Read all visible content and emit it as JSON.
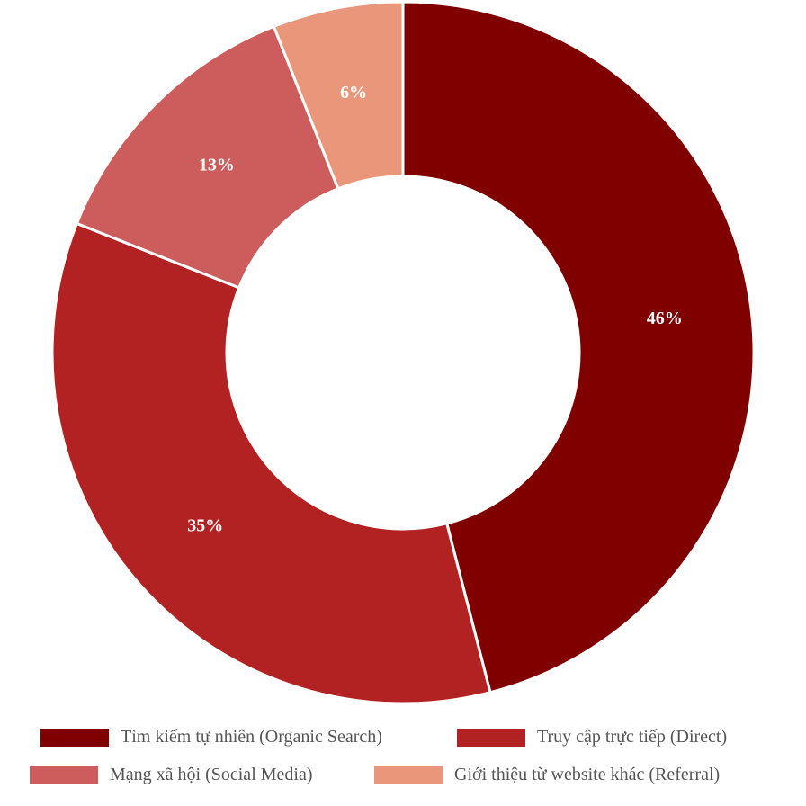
{
  "chart_data": {
    "type": "pie",
    "title": "",
    "categories": [
      "Tìm kiếm tự nhiên (Organic Search)",
      "Truy cập trực tiếp (Direct)",
      "Mạng xã hội (Social Media)",
      "Giới thiệu từ website khác (Referral)"
    ],
    "values": [
      46,
      35,
      13,
      6
    ],
    "labels": [
      "46%",
      "35%",
      "13%",
      "6%"
    ],
    "colors": [
      "#800000",
      "#b22222",
      "#cd5c5c",
      "#e9967a"
    ],
    "donut": true,
    "legend_position": "bottom"
  }
}
